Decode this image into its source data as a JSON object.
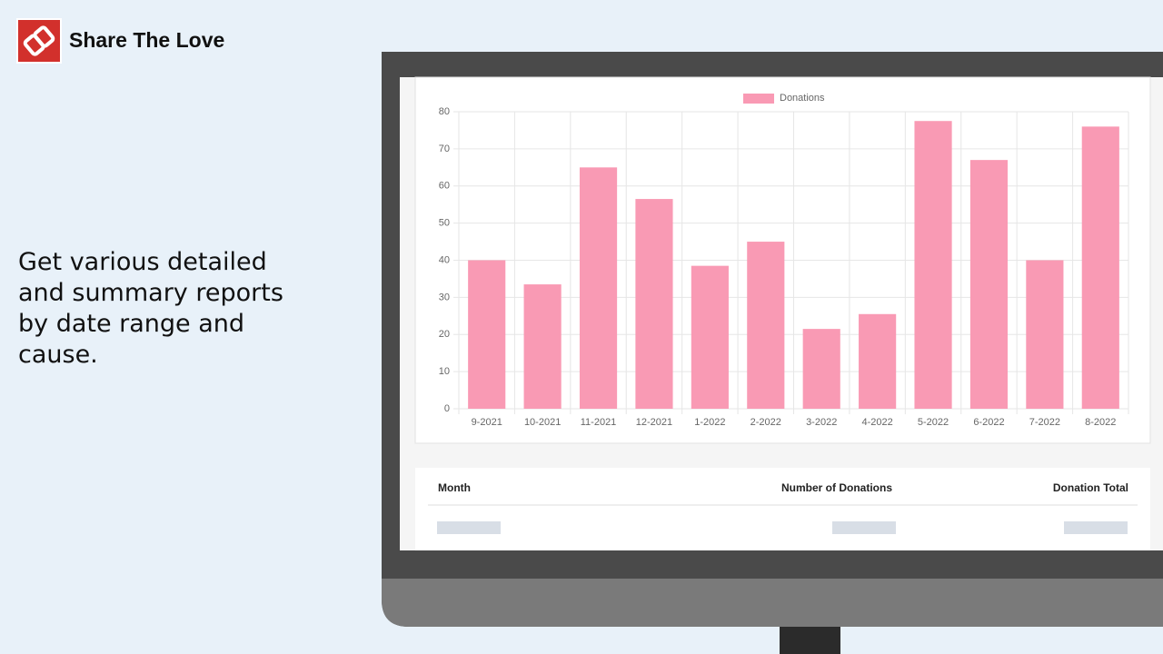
{
  "brand": {
    "name": "Share The Love"
  },
  "tagline": "Get various detailed and summary reports by date range and cause.",
  "chart_data": {
    "type": "bar",
    "categories": [
      "9-2021",
      "10-2021",
      "11-2021",
      "12-2021",
      "1-2022",
      "2-2022",
      "3-2022",
      "4-2022",
      "5-2022",
      "6-2022",
      "7-2022",
      "8-2022"
    ],
    "series": [
      {
        "name": "Donations",
        "color": "#f99ab4",
        "values": [
          40,
          33.5,
          65,
          56.5,
          38.5,
          45,
          21.5,
          25.5,
          77.5,
          67,
          40,
          76
        ]
      }
    ],
    "ylim": [
      0,
      80
    ],
    "yticks": [
      0,
      10,
      20,
      30,
      40,
      50,
      60,
      70,
      80
    ],
    "grid": true,
    "legend": "top"
  },
  "table": {
    "headers": [
      "Month",
      "Number of Donations",
      "Donation Total"
    ]
  }
}
